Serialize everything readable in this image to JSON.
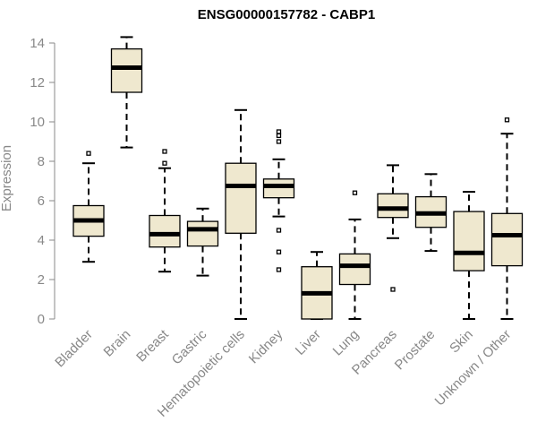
{
  "chart_data": {
    "type": "boxplot",
    "title": "ENSG00000157782 - CABP1",
    "ylabel": "Expression",
    "xlabel": "",
    "ylim": [
      0,
      14
    ],
    "yticks": [
      0,
      2,
      4,
      6,
      8,
      10,
      12,
      14
    ],
    "box_fill": "#efe8cf",
    "categories": [
      "Bladder",
      "Brain",
      "Breast",
      "Gastric",
      "Hematopoietic cells",
      "Kidney",
      "Liver",
      "Lung",
      "Pancreas",
      "Prostate",
      "Skin",
      "Unknown / Other"
    ],
    "boxes": [
      {
        "name": "Bladder",
        "whisker_low": 2.9,
        "q1": 4.2,
        "median": 5.0,
        "q3": 5.75,
        "whisker_high": 7.9,
        "outliers": [
          8.4
        ]
      },
      {
        "name": "Brain",
        "whisker_low": 8.7,
        "q1": 11.5,
        "median": 12.75,
        "q3": 13.7,
        "whisker_high": 14.3,
        "outliers": []
      },
      {
        "name": "Breast",
        "whisker_low": 2.4,
        "q1": 3.65,
        "median": 4.3,
        "q3": 5.25,
        "whisker_high": 7.65,
        "outliers": [
          7.9,
          8.5
        ]
      },
      {
        "name": "Gastric",
        "whisker_low": 2.2,
        "q1": 3.7,
        "median": 4.55,
        "q3": 4.95,
        "whisker_high": 5.6,
        "outliers": []
      },
      {
        "name": "Hematopoietic cells",
        "whisker_low": 0.0,
        "q1": 4.35,
        "median": 6.75,
        "q3": 7.9,
        "whisker_high": 10.6,
        "outliers": []
      },
      {
        "name": "Kidney",
        "whisker_low": 5.2,
        "q1": 6.15,
        "median": 6.75,
        "q3": 7.1,
        "whisker_high": 8.1,
        "outliers": [
          9.5,
          9.3,
          9.0,
          4.5,
          3.4,
          2.5
        ]
      },
      {
        "name": "Liver",
        "whisker_low": 0.0,
        "q1": 0.0,
        "median": 1.3,
        "q3": 2.65,
        "whisker_high": 3.4,
        "outliers": []
      },
      {
        "name": "Lung",
        "whisker_low": 0.0,
        "q1": 1.75,
        "median": 2.7,
        "q3": 3.3,
        "whisker_high": 5.05,
        "outliers": [
          6.4
        ]
      },
      {
        "name": "Pancreas",
        "whisker_low": 4.1,
        "q1": 5.15,
        "median": 5.6,
        "q3": 6.35,
        "whisker_high": 7.8,
        "outliers": [
          1.5
        ]
      },
      {
        "name": "Prostate",
        "whisker_low": 3.45,
        "q1": 4.65,
        "median": 5.35,
        "q3": 6.2,
        "whisker_high": 7.35,
        "outliers": []
      },
      {
        "name": "Skin",
        "whisker_low": 0.0,
        "q1": 2.45,
        "median": 3.35,
        "q3": 5.45,
        "whisker_high": 6.45,
        "outliers": []
      },
      {
        "name": "Unknown / Other",
        "whisker_low": 0.0,
        "q1": 2.7,
        "median": 4.25,
        "q3": 5.35,
        "whisker_high": 9.4,
        "outliers": [
          10.1
        ]
      }
    ]
  }
}
